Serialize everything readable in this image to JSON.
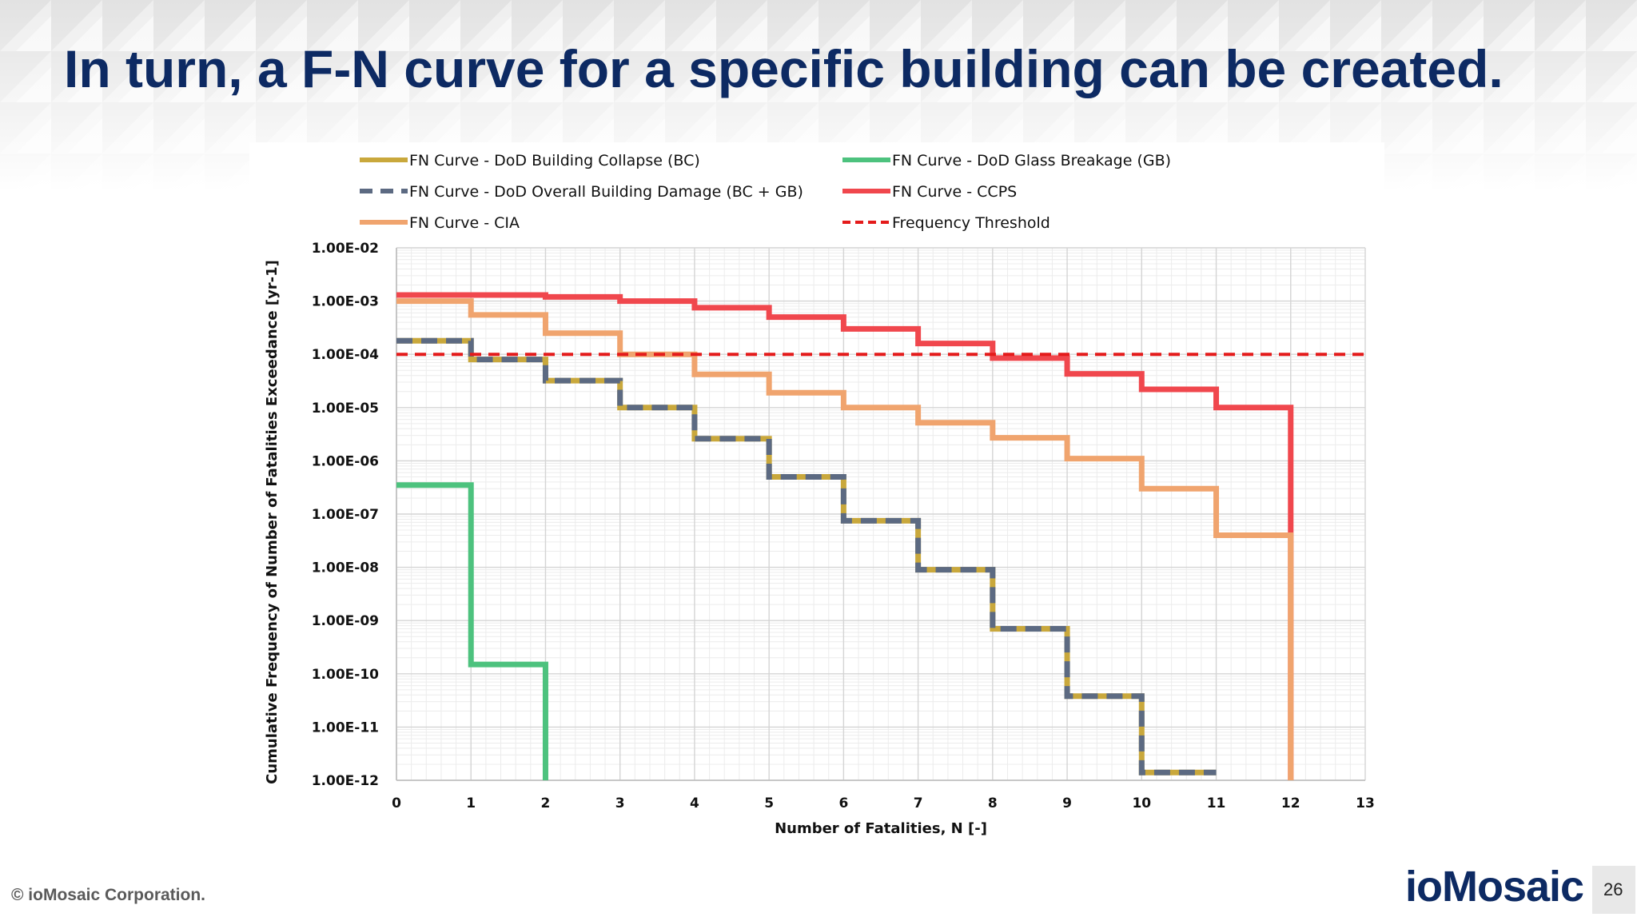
{
  "slide": {
    "title": "In turn, a F-N curve for a specific building can be created.",
    "copyright": "© ioMosaic Corporation.",
    "logo_text": "ioMosaic",
    "page_number": "26"
  },
  "chart_data": {
    "type": "line",
    "step": "post",
    "yscale": "log",
    "title": "",
    "xlabel": "Number of Fatalities, N [-]",
    "ylabel": "Cumulative Frequency of Number of Fatalities Exceedance [yr-1]",
    "xlim": [
      0,
      13
    ],
    "ylim": [
      1e-12,
      0.01
    ],
    "xticks": [
      "0",
      "1",
      "2",
      "3",
      "4",
      "5",
      "6",
      "7",
      "8",
      "9",
      "10",
      "11",
      "12",
      "13"
    ],
    "yticks": [
      "1.00E-02",
      "1.00E-03",
      "1.00E-04",
      "1.00E-05",
      "1.00E-06",
      "1.00E-07",
      "1.00E-08",
      "1.00E-09",
      "1.00E-10",
      "1.00E-11",
      "1.00E-12"
    ],
    "grid": true,
    "legend_position": "top",
    "series": [
      {
        "name": "FN Curve - DoD Building Collapse (BC)",
        "style": "solid",
        "color": "#c9a83c",
        "x": [
          0,
          1,
          2,
          3,
          4,
          5,
          6,
          7,
          8,
          9,
          10,
          11
        ],
        "values": [
          0.00018,
          8e-05,
          3.2e-05,
          1e-05,
          2.6e-06,
          5e-07,
          7.5e-08,
          9e-09,
          7e-10,
          3.8e-11,
          1.4e-12,
          1.4e-12
        ]
      },
      {
        "name": "FN Curve - DoD Glass Breakage (GB)",
        "style": "solid",
        "color": "#4dc27e",
        "x": [
          0,
          1,
          2
        ],
        "values": [
          3.5e-07,
          1.5e-10,
          1e-12
        ]
      },
      {
        "name": "FN Curve - DoD Overall Building Damage (BC + GB)",
        "style": "dashed",
        "color": "#5c6a82",
        "x": [
          0,
          1,
          2,
          3,
          4,
          5,
          6,
          7,
          8,
          9,
          10,
          11
        ],
        "values": [
          0.00018,
          8e-05,
          3.2e-05,
          1e-05,
          2.6e-06,
          5e-07,
          7.5e-08,
          9e-09,
          7e-10,
          3.8e-11,
          1.4e-12,
          1.4e-12
        ]
      },
      {
        "name": "FN Curve - CCPS",
        "style": "solid",
        "color": "#f0474d",
        "x": [
          0,
          1,
          2,
          3,
          4,
          5,
          6,
          7,
          8,
          9,
          10,
          11,
          12
        ],
        "values": [
          0.0013,
          0.0013,
          0.0012,
          0.001,
          0.00075,
          0.0005,
          0.0003,
          0.00016,
          8.5e-05,
          4.3e-05,
          2.2e-05,
          1e-05,
          1e-12
        ]
      },
      {
        "name": "FN Curve - CIA",
        "style": "solid",
        "color": "#f0a46e",
        "x": [
          0,
          1,
          2,
          3,
          4,
          5,
          6,
          7,
          8,
          9,
          10,
          11,
          12
        ],
        "values": [
          0.001,
          0.00055,
          0.00025,
          0.0001,
          4.2e-05,
          1.9e-05,
          1e-05,
          5.2e-06,
          2.7e-06,
          1.1e-06,
          3e-07,
          4e-08,
          1e-12
        ]
      },
      {
        "name": "Frequency Threshold",
        "style": "dashed",
        "color": "#e41b1b",
        "x": [
          0,
          13
        ],
        "values": [
          0.0001,
          0.0001
        ]
      }
    ]
  }
}
